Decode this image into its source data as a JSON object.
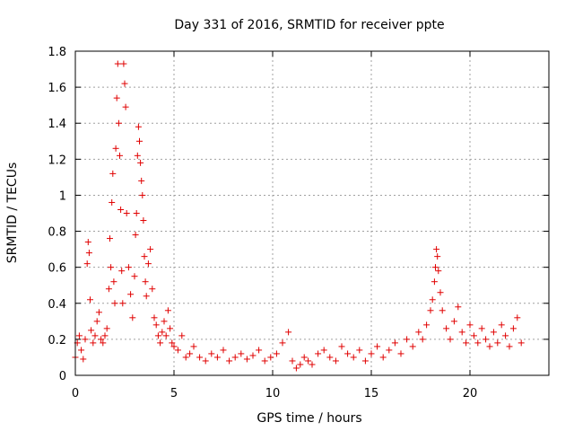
{
  "chart_data": {
    "type": "scatter",
    "title": "Day 331 of 2016, SRMTID for receiver ppte",
    "xlabel": "GPS time / hours",
    "ylabel": "SRMTID / TECUs",
    "xlim": [
      0,
      24
    ],
    "ylim": [
      0,
      1.8
    ],
    "xticks": [
      0,
      5,
      10,
      15,
      20
    ],
    "yticks": [
      0,
      0.2,
      0.4,
      0.6,
      0.8,
      1,
      1.2,
      1.4,
      1.6,
      1.8
    ],
    "ytick_labels": [
      "0",
      "0.2",
      "0.4",
      "0.6",
      "0.8",
      "1",
      "1.2",
      "1.4",
      "1.6",
      "1.8"
    ],
    "grid": true,
    "marker": "+",
    "color": "#e00000",
    "series": [
      {
        "name": "SRMTID",
        "x": [
          0.0,
          0.1,
          0.2,
          0.3,
          0.4,
          0.5,
          0.6,
          0.65,
          0.7,
          0.75,
          0.8,
          0.9,
          1.0,
          1.1,
          1.2,
          1.3,
          1.4,
          1.5,
          1.6,
          1.7,
          1.75,
          1.8,
          1.85,
          1.9,
          1.95,
          2.0,
          2.05,
          2.1,
          2.15,
          2.2,
          2.25,
          2.3,
          2.35,
          2.4,
          2.45,
          2.5,
          2.55,
          2.6,
          2.7,
          2.8,
          2.9,
          3.0,
          3.05,
          3.1,
          3.15,
          3.2,
          3.25,
          3.3,
          3.35,
          3.4,
          3.45,
          3.5,
          3.55,
          3.6,
          3.7,
          3.8,
          3.9,
          4.0,
          4.1,
          4.2,
          4.3,
          4.4,
          4.5,
          4.6,
          4.7,
          4.8,
          4.9,
          5.0,
          5.2,
          5.4,
          5.6,
          5.8,
          6.0,
          6.3,
          6.6,
          6.9,
          7.2,
          7.5,
          7.8,
          8.1,
          8.4,
          8.7,
          9.0,
          9.3,
          9.6,
          9.9,
          10.2,
          10.5,
          10.8,
          11.0,
          11.2,
          11.4,
          11.6,
          11.8,
          12.0,
          12.3,
          12.6,
          12.9,
          13.2,
          13.5,
          13.8,
          14.1,
          14.4,
          14.7,
          15.0,
          15.3,
          15.6,
          15.9,
          16.2,
          16.5,
          16.8,
          17.1,
          17.4,
          17.6,
          17.8,
          18.0,
          18.1,
          18.2,
          18.25,
          18.3,
          18.35,
          18.4,
          18.5,
          18.6,
          18.8,
          19.0,
          19.2,
          19.4,
          19.6,
          19.8,
          20.0,
          20.2,
          20.4,
          20.6,
          20.8,
          21.0,
          21.2,
          21.4,
          21.6,
          21.8,
          22.0,
          22.2,
          22.4,
          22.6
        ],
        "y": [
          0.1,
          0.18,
          0.22,
          0.14,
          0.09,
          0.2,
          0.62,
          0.74,
          0.68,
          0.42,
          0.25,
          0.18,
          0.22,
          0.3,
          0.35,
          0.2,
          0.18,
          0.22,
          0.26,
          0.48,
          0.76,
          0.6,
          0.96,
          1.12,
          0.52,
          0.4,
          1.26,
          1.54,
          1.73,
          1.4,
          1.22,
          0.92,
          0.58,
          0.4,
          1.73,
          1.62,
          1.49,
          0.9,
          0.6,
          0.45,
          0.32,
          0.55,
          0.78,
          0.9,
          1.22,
          1.38,
          1.3,
          1.18,
          1.08,
          1.0,
          0.86,
          0.66,
          0.52,
          0.44,
          0.62,
          0.7,
          0.48,
          0.32,
          0.28,
          0.22,
          0.18,
          0.24,
          0.3,
          0.22,
          0.36,
          0.26,
          0.18,
          0.16,
          0.14,
          0.22,
          0.1,
          0.12,
          0.16,
          0.1,
          0.08,
          0.12,
          0.1,
          0.14,
          0.08,
          0.1,
          0.12,
          0.09,
          0.11,
          0.14,
          0.08,
          0.1,
          0.12,
          0.18,
          0.24,
          0.08,
          0.04,
          0.06,
          0.1,
          0.08,
          0.06,
          0.12,
          0.14,
          0.1,
          0.08,
          0.16,
          0.12,
          0.1,
          0.14,
          0.08,
          0.12,
          0.16,
          0.1,
          0.14,
          0.18,
          0.12,
          0.2,
          0.16,
          0.24,
          0.2,
          0.28,
          0.36,
          0.42,
          0.52,
          0.6,
          0.7,
          0.66,
          0.58,
          0.46,
          0.36,
          0.26,
          0.2,
          0.3,
          0.38,
          0.24,
          0.18,
          0.28,
          0.22,
          0.18,
          0.26,
          0.2,
          0.16,
          0.24,
          0.18,
          0.28,
          0.22,
          0.16,
          0.26,
          0.32,
          0.18
        ]
      }
    ]
  }
}
